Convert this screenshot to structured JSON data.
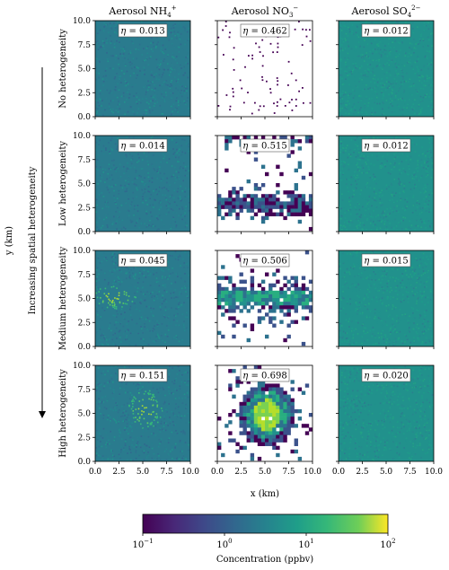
{
  "chart_data": {
    "type": "heatmap",
    "columns": [
      {
        "label": "Aerosol NH",
        "species": "nh4"
      },
      {
        "label": "Aerosol NO",
        "species": "no3"
      },
      {
        "label": "Aerosol SO",
        "species": "so4"
      }
    ],
    "rows": [
      {
        "label": "No heterogeneity"
      },
      {
        "label": "Low heterogeneity"
      },
      {
        "label": "Medium heterogeneity"
      },
      {
        "label": "High heterogeneity"
      }
    ],
    "eta": [
      [
        "0.013",
        "0.462",
        "0.012"
      ],
      [
        "0.014",
        "0.515",
        "0.012"
      ],
      [
        "0.045",
        "0.506",
        "0.015"
      ],
      [
        "0.151",
        "0.698",
        "0.020"
      ]
    ],
    "eta_symbol": "η",
    "arrow_label": "Increasing spatial heterogeneity",
    "xlabel": "x (km)",
    "ylabel": "y (km)",
    "xlim": [
      0,
      10
    ],
    "ylim": [
      0,
      10
    ],
    "x_ticks": [
      "0.0",
      "2.5",
      "5.0",
      "7.5",
      "10.0"
    ],
    "y_ticks": [
      "0.0",
      "2.5",
      "5.0",
      "7.5",
      "10.0"
    ],
    "colorbar": {
      "label": "Concentration (ppbv)",
      "scale": "log",
      "range": [
        0.1,
        100
      ],
      "ticks": [
        {
          "base": "10",
          "exp": "−1"
        },
        {
          "base": "10",
          "exp": "0"
        },
        {
          "base": "10",
          "exp": "1"
        },
        {
          "base": "10",
          "exp": "2"
        }
      ],
      "colormap": "viridis"
    }
  }
}
